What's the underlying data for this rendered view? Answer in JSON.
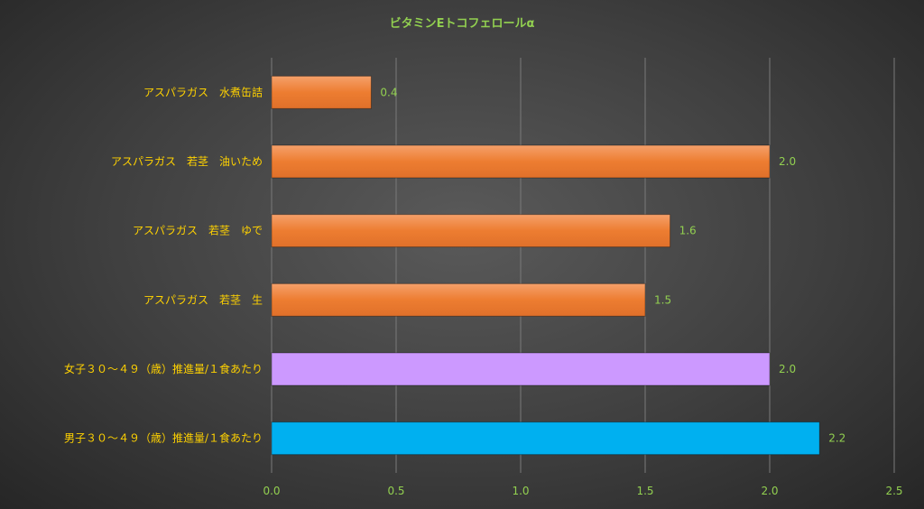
{
  "chart_data": {
    "type": "bar",
    "orientation": "horizontal",
    "title": "ビタミンEトコフェロールα",
    "categories": [
      "アスパラガス　水煮缶詰",
      "アスパラガス　若茎　油いため",
      "アスパラガス　若茎　ゆで",
      "アスパラガス　若茎　生",
      "女子３０～４９（歳）推進量/１食あたり",
      "男子３０～４９（歳）推進量/１食あたり"
    ],
    "values": [
      0.4,
      2.0,
      1.6,
      1.5,
      2.0,
      2.2
    ],
    "value_labels": [
      "0.4",
      "2.0",
      "1.6",
      "1.5",
      "2.0",
      "2.2"
    ],
    "bar_colors": [
      "#ed7d31",
      "#ed7d31",
      "#ed7d31",
      "#ed7d31",
      "#cc99ff",
      "#00b0f0"
    ],
    "xlim": [
      0,
      2.5
    ],
    "xticks": [
      0.0,
      0.5,
      1.0,
      1.5,
      2.0,
      2.5
    ],
    "xtick_labels": [
      "0.0",
      "0.5",
      "1.0",
      "1.5",
      "2.0",
      "2.5"
    ],
    "xlabel": "",
    "ylabel": "",
    "grid": true,
    "legend": "none"
  }
}
